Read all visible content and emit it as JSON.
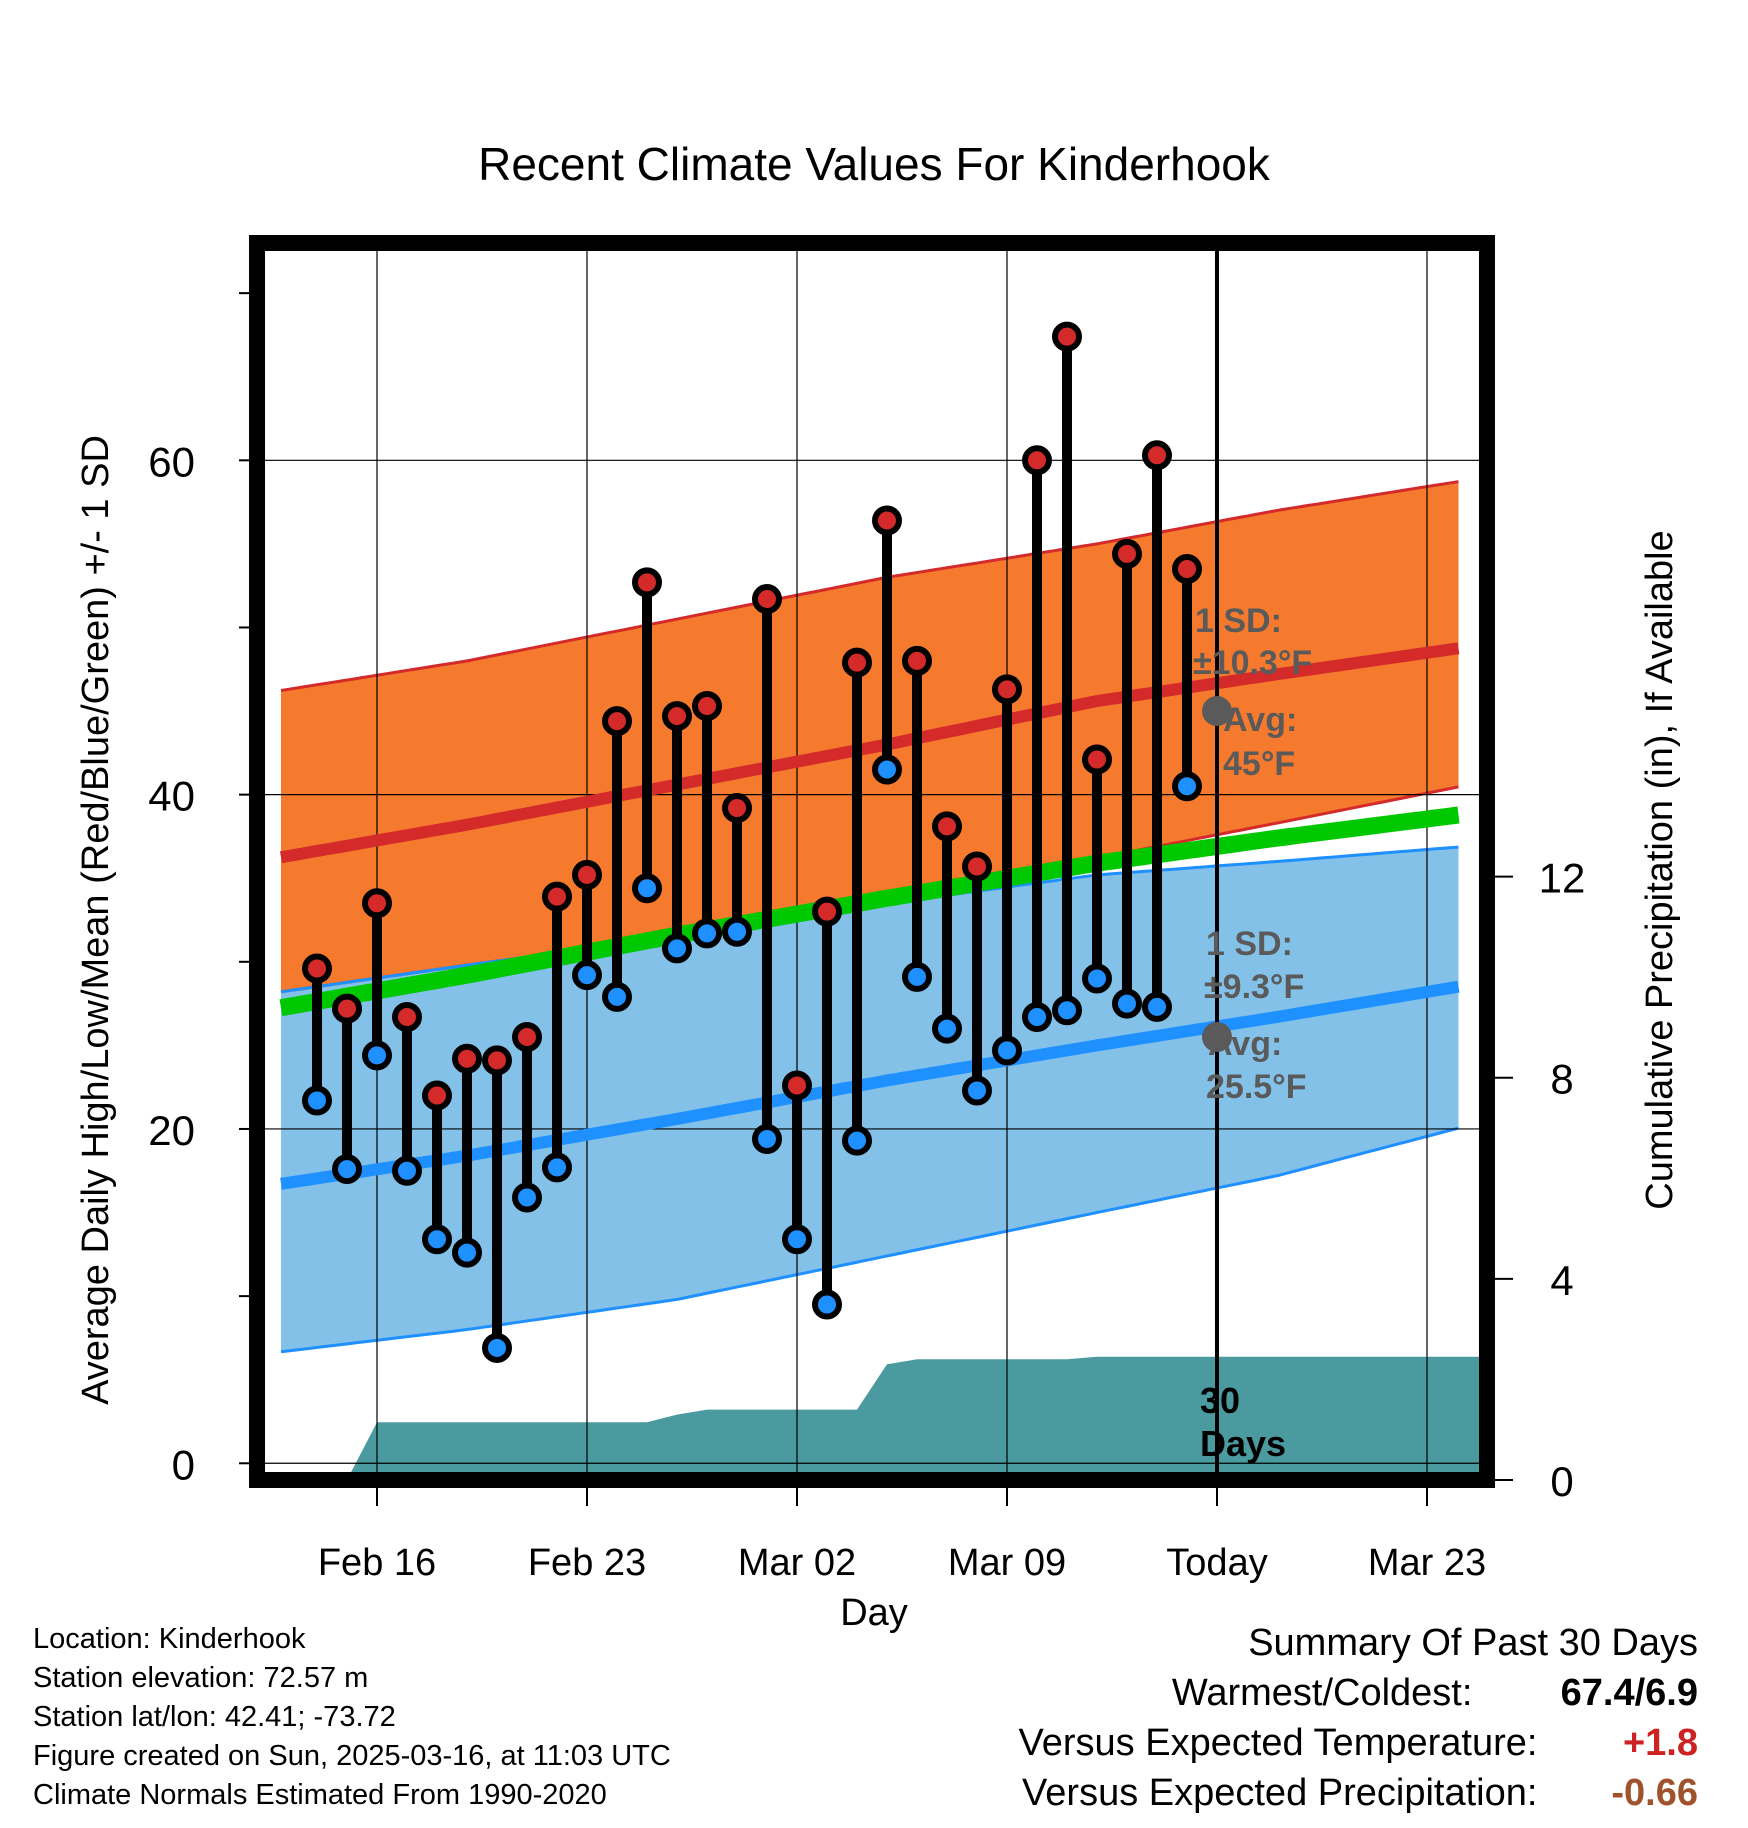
{
  "chart_data": {
    "type": "line",
    "title": "Recent Climate Values For Kinderhook",
    "xlabel": "Day",
    "ylabel": "Average Daily High/Low/Mean (Red/Blue/Green) +/- 1 SD",
    "y2label": "Cumulative Precipitation (in), If Available",
    "ylim": [
      -1,
      73
    ],
    "y2lim": [
      0,
      24.6
    ],
    "yticks": [
      0,
      20,
      40,
      60
    ],
    "y2ticks": [
      0,
      4,
      8,
      12
    ],
    "xrange_days": [
      -32,
      9
    ],
    "xticks": [
      {
        "day": -28,
        "label": "Feb 16"
      },
      {
        "day": -21,
        "label": "Feb 23"
      },
      {
        "day": -14,
        "label": "Mar 02"
      },
      {
        "day": -7,
        "label": "Mar 09"
      },
      {
        "day": 0,
        "label": "Today"
      },
      {
        "day": 7,
        "label": "Mar 23"
      }
    ],
    "grid": true,
    "colors": {
      "high_band": "#f57a2e",
      "high_line": "#d42a2a",
      "low_band": "#83c1e8",
      "low_line": "#1e90ff",
      "mean_line": "#00c800",
      "precip": "#4a9aa0",
      "high_marker": "#d42a2a",
      "low_marker": "#1e90ff",
      "annot": "#5a5a5a"
    },
    "normals": {
      "x": [
        -32,
        -25,
        -18,
        -11,
        -4,
        2,
        9
      ],
      "high_avg": [
        36,
        38.2,
        40.6,
        43.0,
        45.6,
        47.2,
        49.0
      ],
      "high_sd_upper": [
        46,
        48.0,
        50.5,
        53.0,
        55.0,
        57.0,
        59.0
      ],
      "high_sd_lower": [
        28,
        29.8,
        31.5,
        33.5,
        36.2,
        38.3,
        40.8
      ],
      "mean_avg": [
        27,
        29.2,
        31.6,
        33.8,
        35.9,
        37.4,
        39.0
      ],
      "low_avg": [
        16.5,
        18.4,
        20.6,
        22.9,
        25.0,
        26.7,
        28.8
      ],
      "low_sd_upper": [
        28,
        29.8,
        31.5,
        33.5,
        35.2,
        36.0,
        37.0
      ],
      "low_sd_lower": [
        6.5,
        8.0,
        9.8,
        12.4,
        15.0,
        17.2,
        20.5
      ]
    },
    "daily": {
      "day": [
        -30,
        -29,
        -28,
        -27,
        -26,
        -25,
        -24,
        -23,
        -22,
        -21,
        -20,
        -19,
        -18,
        -17,
        -16,
        -15,
        -14,
        -13,
        -12,
        -11,
        -10,
        -9,
        -8,
        -7,
        -6,
        -5,
        -4,
        -3,
        -2,
        -1
      ],
      "high": [
        29.6,
        27.2,
        33.5,
        26.7,
        22.0,
        24.2,
        24.1,
        25.5,
        33.9,
        35.2,
        44.4,
        52.7,
        44.7,
        45.3,
        39.2,
        51.7,
        22.6,
        33.0,
        47.9,
        56.4,
        48.0,
        38.1,
        35.7,
        46.3,
        60.0,
        67.4,
        42.1,
        54.4,
        60.3,
        53.5
      ],
      "low": [
        21.7,
        17.6,
        24.4,
        17.5,
        13.4,
        12.6,
        6.9,
        15.9,
        17.7,
        29.2,
        27.9,
        34.4,
        30.8,
        31.7,
        31.8,
        19.4,
        13.4,
        9.5,
        19.3,
        41.5,
        29.1,
        26.0,
        22.3,
        24.7,
        26.7,
        27.1,
        29.0,
        27.5,
        27.3,
        40.5
      ]
    },
    "precip": {
      "day": [
        -32,
        -30,
        -29,
        -28,
        -25,
        -22,
        -19,
        -18,
        -17,
        -14,
        -12,
        -11,
        -10,
        -8,
        -5,
        -4,
        0,
        9
      ],
      "value": [
        0,
        0,
        0,
        1.15,
        1.15,
        1.15,
        1.15,
        1.3,
        1.4,
        1.4,
        1.4,
        2.3,
        2.4,
        2.4,
        2.4,
        2.45,
        2.45,
        2.45
      ]
    },
    "annotations": {
      "high_sd_line1": "1 SD:",
      "high_sd_line2": "±10.3°F",
      "high_avg_line1": "Avg:",
      "high_avg_line2": "45°F",
      "high_avg_value": 45,
      "low_sd_line1": "1 SD:",
      "low_sd_line2": "±9.3°F",
      "low_avg_line1": "Avg:",
      "low_avg_line2": "25.5°F",
      "low_avg_value": 25.5,
      "window_line1": "30",
      "window_line2": "Days"
    }
  },
  "meta": {
    "location": "Location: Kinderhook",
    "elevation": "Station elevation: 72.57 m",
    "latlon": "Station lat/lon: 42.41; -73.72",
    "created": "Figure created on Sun, 2025-03-16, at 11:03 UTC",
    "normals": "Climate Normals Estimated From 1990-2020"
  },
  "summary": {
    "title": "Summary Of Past 30 Days",
    "warmest_label": "Warmest/Coldest:",
    "warmest_value": "67.4/6.9",
    "temp_label": "Versus Expected Temperature:",
    "temp_value": "+1.8",
    "temp_color": "#cc2222",
    "precip_label": "Versus Expected Precipitation:",
    "precip_value": "-0.66",
    "precip_color": "#a0522d"
  }
}
